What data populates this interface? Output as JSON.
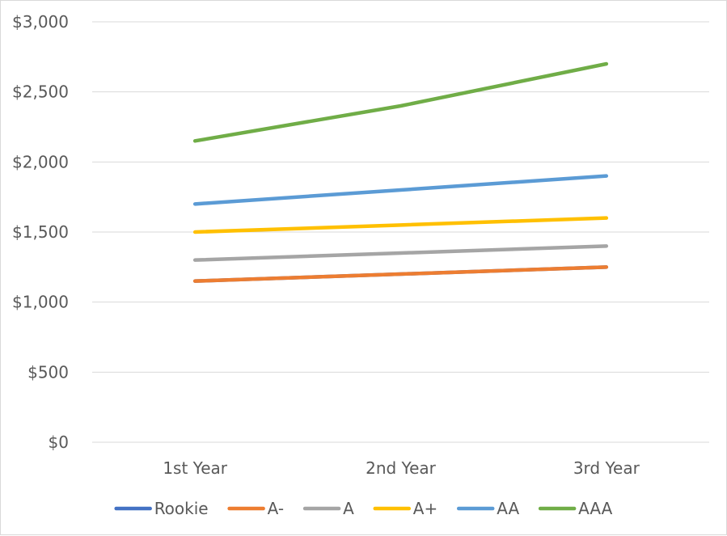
{
  "chart_data": {
    "type": "line",
    "title": "",
    "xlabel": "",
    "ylabel": "",
    "categories": [
      "1st Year",
      "2nd Year",
      "3rd Year"
    ],
    "ylim": [
      0,
      3000
    ],
    "y_ticks": [
      0,
      500,
      1000,
      1500,
      2000,
      2500,
      3000
    ],
    "y_tick_labels": [
      "$0",
      "$500",
      "$1,000",
      "$1,500",
      "$2,000",
      "$2,500",
      "$3,000"
    ],
    "grid": true,
    "legend_position": "bottom",
    "series": [
      {
        "name": "Rookie",
        "color": "#4472C4",
        "values": [
          1150,
          1200,
          1250
        ]
      },
      {
        "name": "A-",
        "color": "#ED7D31",
        "values": [
          1150,
          1200,
          1250
        ]
      },
      {
        "name": "A",
        "color": "#A5A5A5",
        "values": [
          1300,
          1350,
          1400
        ]
      },
      {
        "name": "A+",
        "color": "#FFC000",
        "values": [
          1500,
          1550,
          1600
        ]
      },
      {
        "name": "AA",
        "color": "#5B9BD5",
        "values": [
          1700,
          1800,
          1900
        ]
      },
      {
        "name": "AAA",
        "color": "#70AD47",
        "values": [
          2150,
          2400,
          2700
        ]
      }
    ]
  }
}
